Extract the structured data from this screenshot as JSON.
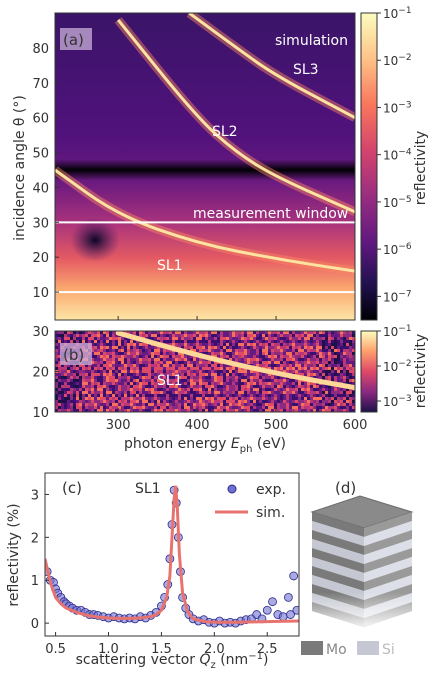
{
  "panel_a": {
    "letter": "(a)",
    "text_simulation": "simulation",
    "text_sl3": "SL3",
    "text_sl2": "SL2",
    "text_measurement": "measurement window",
    "text_sl1": "SL1",
    "ylabel": "incidence angle θ (°)",
    "yticks": [
      "10",
      "20",
      "30",
      "40",
      "50",
      "60",
      "70",
      "80"
    ],
    "colorbar_label": "reflectivity",
    "colorbar_ticks": [
      "10^-1",
      "10^-2",
      "10^-3",
      "10^-4",
      "10^-5",
      "10^-6",
      "10^-7"
    ]
  },
  "panel_b": {
    "letter": "(b)",
    "text_sl1": "SL1",
    "yticks": [
      "10",
      "20",
      "30"
    ],
    "colorbar_label": "reflectivity",
    "colorbar_ticks": [
      "10^-1",
      "10^-2",
      "10^-3"
    ]
  },
  "shared_x": {
    "xlabel": "photon energy E_ph (eV)",
    "xticks": [
      "300",
      "400",
      "500",
      "600"
    ]
  },
  "panel_c": {
    "letter": "(c)",
    "sl1_label": "SL1",
    "legend": {
      "exp": "exp.",
      "sim": "sim."
    },
    "ylabel": "reflectivity (%)",
    "xlabel": "scattering vector Q_z (nm^-1)",
    "xticks": [
      "0.5",
      "1.0",
      "1.5",
      "2.0",
      "2.5"
    ],
    "yticks": [
      "0",
      "1",
      "2",
      "3"
    ]
  },
  "panel_d": {
    "letter": "(d)",
    "legend_mo": "Mo",
    "legend_si": "Si",
    "colors": {
      "mo": "#7a7a7a",
      "si": "#c5c8d2"
    }
  },
  "chart_data": [
    {
      "type": "heatmap",
      "panel": "a",
      "x_range": [
        220,
        600
      ],
      "y_range": [
        2,
        90
      ],
      "colorscale": "magma (log)",
      "z_range": [
        1e-07,
        0.1
      ],
      "measurement_window_deg": [
        10,
        30
      ],
      "ridges": [
        {
          "name": "SL1",
          "x": [
            220,
            300,
            400,
            500,
            600
          ],
          "y": [
            45,
            32,
            24,
            19.5,
            16
          ]
        },
        {
          "name": "SL2",
          "x": [
            300,
            400,
            450,
            500,
            600
          ],
          "y": [
            88,
            60,
            50,
            43,
            33
          ]
        },
        {
          "name": "SL3",
          "x": [
            390,
            450,
            500,
            600
          ],
          "y": [
            90,
            80,
            72,
            60
          ]
        }
      ],
      "dark_band_deg": [
        42,
        48
      ]
    },
    {
      "type": "heatmap",
      "panel": "b",
      "x_range": [
        220,
        600
      ],
      "y_range": [
        10,
        30
      ],
      "z_range": [
        0.0005,
        0.1
      ],
      "ridge": {
        "name": "SL1",
        "x": [
          300,
          400,
          500,
          600
        ],
        "y": [
          29.5,
          24,
          19.5,
          16
        ]
      }
    },
    {
      "type": "scatter",
      "panel": "c",
      "xlim": [
        0.4,
        2.8
      ],
      "ylim": [
        -0.3,
        3.5
      ],
      "series": [
        {
          "name": "exp.",
          "x": [
            0.42,
            0.45,
            0.48,
            0.5,
            0.52,
            0.55,
            0.58,
            0.6,
            0.63,
            0.66,
            0.7,
            0.74,
            0.78,
            0.82,
            0.86,
            0.9,
            0.95,
            1.0,
            1.05,
            1.1,
            1.15,
            1.2,
            1.25,
            1.3,
            1.35,
            1.4,
            1.45,
            1.5,
            1.53,
            1.56,
            1.58,
            1.6,
            1.62,
            1.64,
            1.66,
            1.68,
            1.7,
            1.73,
            1.76,
            1.8,
            1.85,
            1.9,
            1.95,
            2.0,
            2.05,
            2.1,
            2.15,
            2.2,
            2.25,
            2.3,
            2.35,
            2.4,
            2.45,
            2.5,
            2.55,
            2.6,
            2.65,
            2.7,
            2.72,
            2.75,
            2.78
          ],
          "y": [
            1.2,
            1.0,
            0.95,
            0.8,
            0.7,
            0.6,
            0.5,
            0.45,
            0.4,
            0.35,
            0.3,
            0.3,
            0.25,
            0.2,
            0.2,
            0.18,
            0.15,
            0.12,
            0.15,
            0.12,
            0.1,
            0.12,
            0.1,
            0.15,
            0.12,
            0.18,
            0.25,
            0.4,
            0.6,
            0.9,
            1.5,
            2.3,
            3.1,
            2.8,
            2.0,
            1.2,
            0.6,
            0.35,
            0.2,
            0.1,
            0.05,
            0.08,
            0.02,
            0.0,
            0.05,
            0.0,
            0.02,
            0.0,
            0.05,
            0.08,
            0.1,
            0.2,
            0.1,
            0.3,
            0.5,
            0.2,
            0.15,
            0.6,
            0.2,
            1.1,
            0.3
          ]
        },
        {
          "name": "sim.",
          "x": [
            0.4,
            0.45,
            0.5,
            0.55,
            0.6,
            0.7,
            0.8,
            0.9,
            1.0,
            1.1,
            1.2,
            1.3,
            1.4,
            1.45,
            1.5,
            1.55,
            1.58,
            1.6,
            1.62,
            1.635,
            1.65,
            1.67,
            1.7,
            1.75,
            1.8,
            1.9,
            2.0,
            2.2,
            2.4,
            2.6,
            2.8
          ],
          "y": [
            1.5,
            0.95,
            0.6,
            0.45,
            0.35,
            0.25,
            0.18,
            0.14,
            0.12,
            0.11,
            0.11,
            0.12,
            0.15,
            0.2,
            0.3,
            0.6,
            1.1,
            2.0,
            2.9,
            3.2,
            2.7,
            1.6,
            0.7,
            0.25,
            0.1,
            0.04,
            0.02,
            0.02,
            0.03,
            0.04,
            0.05
          ]
        }
      ]
    }
  ]
}
